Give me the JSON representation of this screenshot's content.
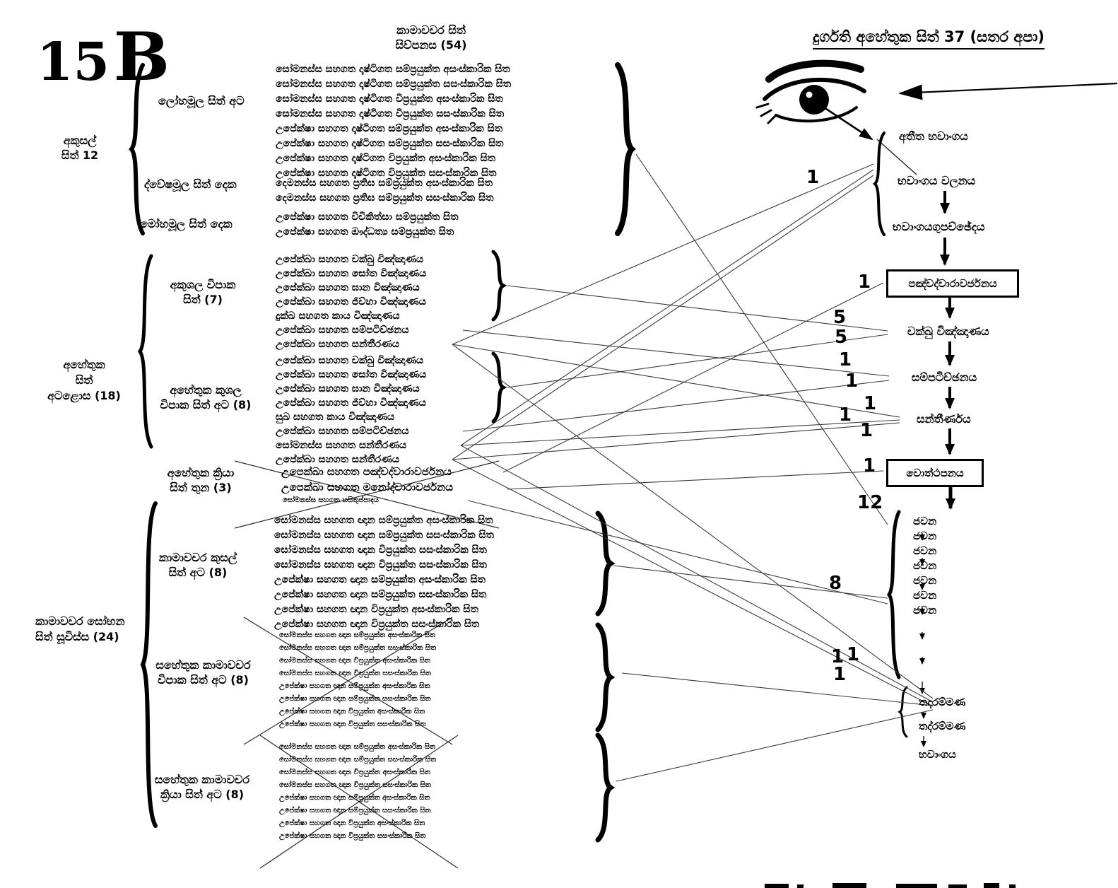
{
  "page_label": {
    "num": "15",
    "letter": "B"
  },
  "main_title": [
    "කාමාවචර සිත්",
    "සිව්පනස (54)"
  ],
  "right_title": "දුර්ගති අහේතුක සිත්   37 (සතර අපා)",
  "labels": {
    "akusal": [
      "අකුසල්",
      "සිත් 12"
    ],
    "lobha": "ලෝහමූල සිත් අට",
    "dvesha": "ද්වේෂමූල සිත් දෙක",
    "moha": "මෝහමූල සිත් දෙක",
    "ahetuka": [
      "අහේතුක",
      "සිත්",
      "අටළොස (18)"
    ],
    "akusala_vipaka": [
      "අකුශල විපාක",
      "සිත් (7)"
    ],
    "ahetuka_kusala_vipaka": [
      "අහේතුක කුශල",
      "විපාක සිත් අට (8)"
    ],
    "ahetuka_kriya": [
      "අහේතුක ක්‍රියා",
      "සිත් තුන (3)"
    ],
    "sobhana": [
      "කාමාවචර සෝභන",
      "සිත් සූවිස්ස (24)"
    ],
    "kusal8": [
      "කාමාවචර කුසල්",
      "සිත් අට (8)"
    ],
    "sahetuka_vipaka": [
      "සහේතුක කාමාවචර",
      "විපාක සිත් අට (8)"
    ],
    "sahetuka_kriya": [
      "සහේතුක කාමාවචර",
      "ක්‍රියා සිත් අට (8)"
    ]
  },
  "lists": {
    "lobha_rows": [
      "සෝමනස්ස සහගත දෘෂ්ටිගත සම්ප්‍රයුක්ත අසංස්කාරික සිත",
      "සෝමනස්ස සහගත දෘෂ්ටිගත සම්ප්‍රයුක්ත සසංස්කාරික සිත",
      "සෝමනස්ස සහගත දෘෂ්ටිගත විප්‍රයුක්ත අසංස්කාරික සිත",
      "සෝමනස්ස සහගත දෘෂ්ටිගත විප්‍රයුක්ත සසංස්කාරික සිත",
      "උපේක්ෂා සහගත දෘෂ්ටිගත සම්ප්‍රයුක්ත අසංස්කාරික සිත",
      "උපේක්ෂා සහගත දෘෂ්ටිගත සම්ප්‍රයුක්ත සසංස්කාරික සිත",
      "උපේක්ෂා සහගත දෘෂ්ටිගත විප්‍රයුක්ත අසංස්කාරික සිත",
      "උපේක්ෂා සහගත දෘෂ්ටිගත විප්‍රයුක්ත සසංස්කාරික සිත"
    ],
    "dvesha_rows": [
      "දෙමනස්ස සහගත ප්‍රතිඝ සම්ප්‍රයුක්ත අසංස්කාරික සිත",
      "දෙමනස්ස සහගත ප්‍රතිඝ සම්ප්‍රයුක්ත සසංස්කාරික සිත"
    ],
    "moha_rows": [
      "උපේක්ෂා සහගත විචිකිත්සා සම්ප්‍රයුක්ත  සිත",
      "උපේක්ෂා සහගත ඖද්ධත්‍ය සම්ප්‍රයුක්ත  සිත"
    ],
    "akusala_vipaka_rows": [
      "උපේක්ඛා සහගත චක්ඛු විඤ්ඤාණය",
      "උපේක්ඛා සහගත සෝත විඤ්ඤාණය",
      "උපේක්ඛා සහගත ඝාන විඤ්ඤාණය",
      "උපේක්ඛා සහගත ජිව්හා විඤ්ඤාණය",
      "දුක්ඛ සහගත කාය විඤ්ඤාණය",
      "උපේක්ඛා සහගත සම්පටිච්ඡනය",
      "උපේක්ඛා සහගත සන්තීරණය"
    ],
    "kusala_vipaka_rows": [
      "උපේක්ඛා සහගත චක්ඛු විඤ්ඤාණය",
      "උපේක්ඛා සහගත සෝත විඤ්ඤාණය",
      "උපේක්ඛා සහගත ඝාන විඤ්ඤාණය",
      "උපේක්ඛා සහගත ජිව්හා විඤ්ඤාණය",
      "සුඛ සහගත කාය විඤ්ඤාණය",
      "උපේක්ඛා සහගත සම්පටිච්ඡනය",
      "සෝමනස්ස සහගත සන්තීරණය",
      "උපේක්ඛා සහගත සන්තීරණය"
    ],
    "kriya_rows": [
      "උපෙක්ඛා සහගත පඤ්චද්වාරාවර්ජනය",
      "උපෙක්ඛා සහගත මනෝද්වාරාවර්ජනය"
    ],
    "kriya_crossed_row": "සෝමනස්ස සහගත හසිතුප්පාදය",
    "kusal8_rows": [
      "සෝමනස්ස සහගත ඥාන සම්ප්‍රයුක්ත අසංස්කාරික සිත",
      "සෝමනස්ස සහගත ඥාන සම්ප්‍රයුක්ත සසංස්කාරික සිත",
      "සෝමනස්ස සහගත ඥාන  විප්‍රයුක්ත සසංස්කාරික සිත",
      "සෝමනස්ස සහගත ඥාන විප්‍රයුක්ත සසංස්කාරික සිත",
      "උපේක්ෂා සහගත ඥාන සම්ප්‍රයුක්ත අසංස්කාරික සිත",
      "උපේක්ෂා සහගත ඥාන සම්ප්‍රයුක්ත සසංස්කාරික සිත",
      "උපේක්ෂා සහගත ඥාන විප්‍රයුක්ත අසංස්කාරික සිත",
      "උපේක්ෂා සහගත ඥාන විප්‍රයුක්ත සසංස්කාරික සිත"
    ],
    "sahetuka_vipaka_rows": [
      "සෝමනස්ස සහගත ඥාන සම්ප්‍රයුක්ත අසංස්කාරික සිත",
      "සෝමනස්ස සහගත ඥාන සම්ප්‍රයුක්ත සසංස්කාරික සිත",
      "සෝමනස්ස සහගත ඥාන විප්‍රයුක්ත අසංස්කාරික සිත",
      "සෝමනස්ස සහගත ඥාන විප්‍රයුක්ත සසංස්කාරික සිත",
      "උපේක්ෂා සහගත ඥාන සම්ප්‍රයුක්ත අසංස්කාරික සිත",
      "උපේක්ෂා සහගත ඥාන සම්ප්‍රයුක්ත සසංස්කාරික සිත",
      "උපේක්ෂා සහගත ඥාන විප්‍රයුක්ත අසංස්කාරික සිත",
      "උපේක්ෂා සහගත ඥාන විප්‍රයුක්ත සසංස්කාරික සිත"
    ],
    "sahetuka_kriya_rows": [
      "සෝමනස්ස සහගත ඥාන සම්ප්‍රයුක්ත අසංස්කාරික සිත",
      "සෝමනස්ස සහගත ඥාන සම්ප්‍රයුක්ත සසංස්කාරික සිත",
      "සෝමනස්ස සහගත ඥාන විප්‍රයුක්ත අසංස්කාරික සිත",
      "සෝමනස්ස සහගත ඥාන විප්‍රයුක්ත සසංස්කාරික සිත",
      "උපේක්ෂා සහගත ඥාන සම්ප්‍රයුක්ත අසංස්කාරික සිත",
      "උපේක්ෂා සහගත ඥාන සම්ප්‍රයුක්ත සසංස්කාරික සිත",
      "උපේක්ෂා සහගත ඥාන විප්‍රයුක්ත අසංස්කාරික සිත",
      "උපේක්ෂා සහගත ඥාන විප්‍රයුක්ත සසංස්කාරික සිත"
    ]
  },
  "flow": {
    "atita_bhavanga": "අතීත භවාංගය",
    "bhavanga_calana": "භවාංගය වලනය",
    "bhavanga_upaccheda": "භවාංගයගුපච්ඡේදය",
    "pancadvaravajjana": "පඤ්චද්වාරාවර්ජනය",
    "cakkhu_vinnana": "චක්ඛු විඤ්ඤාණය",
    "sampaticchana": "සම්පටිච්ඡනය",
    "santirana": "සන්තීර්ණය",
    "votthapana": "වොත්ථපනය",
    "javana_rows": [
      "ජවන",
      "ජවන",
      "ජවන",
      "ජවන",
      "ජවන",
      "ජවන",
      "ජවන"
    ],
    "tadarammana_1": "තදරම්මණ",
    "tadarammana_2": "තද්රම්මණ",
    "bhavanga_end": "භවාංගය"
  },
  "count_labels": [
    "1",
    "1",
    "5",
    "5",
    "1",
    "1",
    "1",
    "1",
    "1",
    "1",
    "12",
    "8",
    "1",
    "1",
    "1"
  ]
}
